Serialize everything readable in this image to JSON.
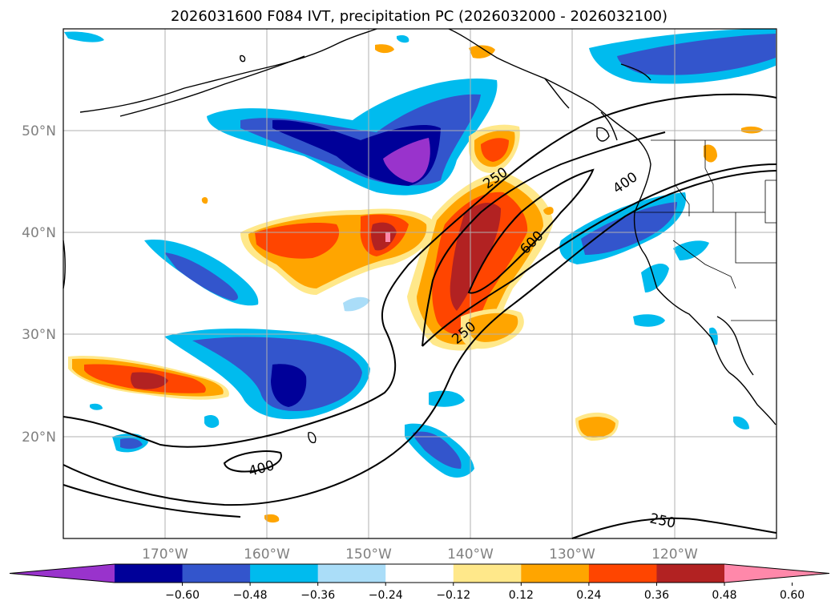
{
  "title": "2026031600 F084 IVT, precipitation PC (2026032000 - 2026032100)",
  "axes": {
    "lat_labels": [
      "50°N",
      "40°N",
      "30°N",
      "20°N"
    ],
    "lon_labels": [
      "170°W",
      "160°W",
      "150°W",
      "140°W",
      "130°W",
      "120°W"
    ]
  },
  "colorbar": {
    "colors": [
      "#9933cc",
      "#000099",
      "#3355cc",
      "#00bbee",
      "#aaddf8",
      "#ffffff",
      "#ffe88a",
      "#ffa500",
      "#ff4500",
      "#b22222",
      "#ff88aa"
    ],
    "tick_labels": [
      "−0.60",
      "−0.48",
      "−0.36",
      "−0.24",
      "−0.12",
      "0.12",
      "0.24",
      "0.36",
      "0.48",
      "0.60"
    ]
  },
  "ivt_contour_labels": [
    "250",
    "600",
    "400",
    "250",
    "400",
    "250"
  ]
}
